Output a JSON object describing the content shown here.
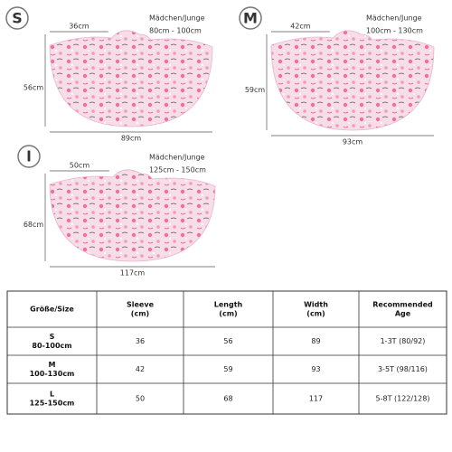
{
  "panels": [
    {
      "size": "S",
      "line1": "Mädchen/Junge",
      "line2": "80cm - 100cm",
      "sleeve": "36cm",
      "length": "56cm",
      "width": "89cm"
    },
    {
      "size": "M",
      "line1": "Mädchen/Junge",
      "line2": "100cm - 130cm",
      "sleeve": "42cm",
      "length": "59cm",
      "width": "93cm"
    },
    {
      "size": "l",
      "line1": "Mädchen/Junge",
      "line2": "125cm - 150cm",
      "sleeve": "50cm",
      "length": "68cm",
      "width": "117cm"
    }
  ],
  "table": {
    "header": [
      [
        "Größe/Size"
      ],
      [
        "Sleeve",
        "(cm)"
      ],
      [
        "Length",
        "(cm)"
      ],
      [
        "Width",
        "(cm)"
      ],
      [
        "Recommended",
        "Age"
      ]
    ],
    "rows": [
      [
        [
          "S",
          "80-100cm"
        ],
        36,
        56,
        89,
        "1-3T (80/92)"
      ],
      [
        [
          "M",
          "100-130cm"
        ],
        42,
        59,
        93,
        "3-5T (98/116)"
      ],
      [
        [
          "L",
          "125-150cm"
        ],
        50,
        68,
        117,
        "5-8T (122/128)"
      ]
    ]
  }
}
